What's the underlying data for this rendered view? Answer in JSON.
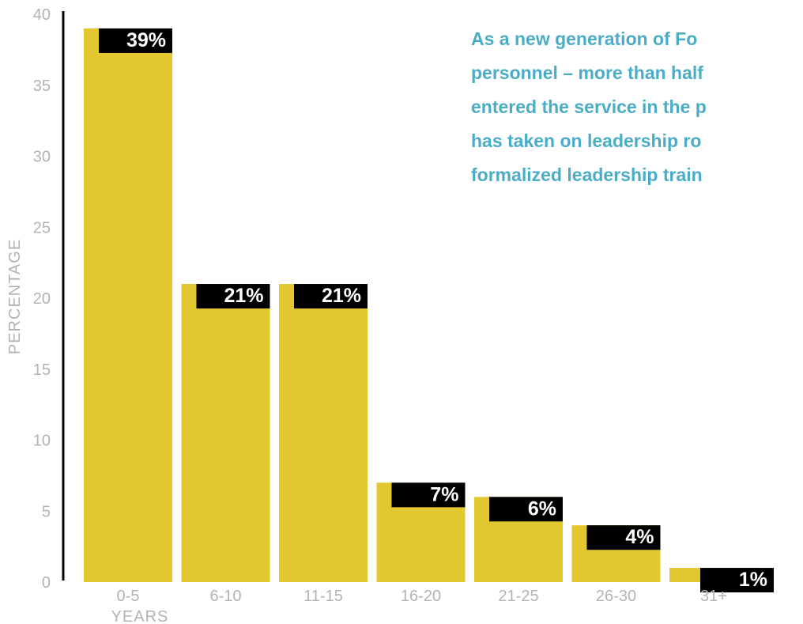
{
  "chart_data": {
    "type": "bar",
    "categories": [
      "0-5",
      "6-10",
      "11-15",
      "16-20",
      "21-25",
      "26-30",
      "31+"
    ],
    "values": [
      39,
      21,
      21,
      7,
      6,
      4,
      1
    ],
    "data_labels": [
      "39%",
      "21%",
      "21%",
      "7%",
      "6%",
      "4%",
      "1%"
    ],
    "xlabel": "YEARS",
    "ylabel": "PERCENTAGE",
    "ylim": [
      0,
      40
    ],
    "yticks": [
      0,
      5,
      10,
      15,
      20,
      25,
      30,
      35,
      40
    ],
    "grid": false,
    "colors": {
      "bar": "#e2c72e",
      "label_bg": "#000000",
      "label_text": "#ffffff",
      "axis_text": "#b3b3b3",
      "annotation": "#4bacc6"
    },
    "annotation_lines": [
      "As a new generation of Fo",
      "personnel – more than half",
      "entered the service in the p",
      "has taken on leadership ro",
      "formalized leadership train"
    ]
  }
}
